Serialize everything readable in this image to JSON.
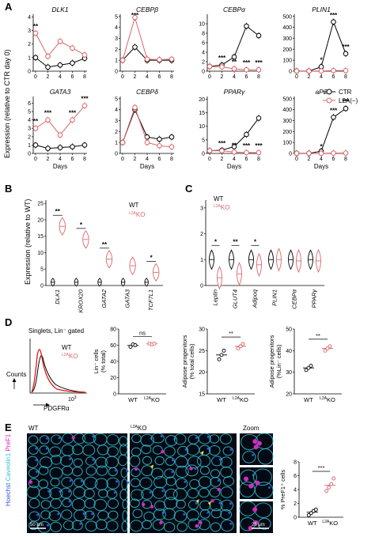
{
  "panel_letters": [
    "A",
    "B",
    "C",
    "D",
    "E"
  ],
  "colors": {
    "ctr": "#000000",
    "l2a": "#d9666a",
    "cyan": "#36c2d0",
    "magenta": "#d32bbf",
    "blue": "#2f5ad8",
    "yellow": "#e8e83a"
  },
  "panelA": {
    "ylabel": "Expression (relative to CTR day 0)",
    "xlabel": "Days",
    "legend": [
      "CTR",
      "L2A(−)"
    ],
    "x_ticks": [
      "0",
      "2",
      "4",
      "6",
      "8"
    ],
    "charts": [
      {
        "title": "DLK1",
        "yticks": [
          "0",
          "1",
          "2",
          "3",
          "4"
        ],
        "ylim": [
          0,
          4.2
        ],
        "x": [
          0,
          2,
          4,
          6,
          8
        ],
        "ctr": [
          1,
          0.3,
          0.45,
          0.6,
          0.95
        ],
        "l2a": [
          2.8,
          1.1,
          2.2,
          1.7,
          1.2
        ],
        "sig": [
          "**",
          "",
          "",
          "",
          ""
        ]
      },
      {
        "title": "CEBPβ",
        "yticks": [
          "0",
          "1",
          "2",
          "3",
          "4",
          "5"
        ],
        "ylim": [
          0,
          5.2
        ],
        "x": [
          0,
          2,
          4,
          6,
          8
        ],
        "ctr": [
          1,
          2.2,
          1,
          1,
          1
        ],
        "l2a": [
          1,
          4.9,
          1.1,
          1.05,
          1.1
        ],
        "sig": [
          "",
          "***",
          "",
          "",
          ""
        ]
      },
      {
        "title": "CEBPα",
        "yticks": [
          "0",
          "2",
          "4",
          "6",
          "8",
          "10"
        ],
        "ylim": [
          0,
          12
        ],
        "x": [
          0,
          2,
          4,
          6,
          8
        ],
        "ctr": [
          1,
          1.3,
          3,
          9.5,
          7.5
        ],
        "l2a": [
          1,
          0.9,
          0.5,
          0.3,
          0.3
        ],
        "sig": [
          "",
          "***",
          "**",
          "***",
          "***"
        ]
      },
      {
        "title": "PLIN1",
        "yticks": [
          "0",
          "100",
          "200",
          "300",
          "400",
          "500"
        ],
        "ylim": [
          0,
          520
        ],
        "x": [
          0,
          2,
          4,
          6,
          8
        ],
        "ctr": [
          1,
          1,
          40,
          450,
          160
        ],
        "l2a": [
          1,
          1,
          2,
          5,
          5
        ],
        "sig": [
          "",
          "",
          "*",
          "***",
          "***"
        ]
      },
      {
        "title": "GATA3",
        "yticks": [
          "0",
          "1",
          "2",
          "3",
          "4",
          "5",
          "6"
        ],
        "ylim": [
          0,
          6.8
        ],
        "x": [
          0,
          2,
          4,
          6,
          8
        ],
        "ctr": [
          1,
          0.6,
          0.7,
          0.8,
          1.0
        ],
        "l2a": [
          3.0,
          4.0,
          2.2,
          4.0,
          5.7
        ],
        "sig": [
          "**",
          "***",
          "",
          "***",
          "***"
        ]
      },
      {
        "title": "CEBPδ",
        "yticks": [
          "0",
          "1",
          "2",
          "3",
          "4",
          "5"
        ],
        "ylim": [
          0,
          5.2
        ],
        "x": [
          0,
          2,
          4,
          6,
          8
        ],
        "ctr": [
          1,
          4,
          1.5,
          1.3,
          1.5
        ],
        "l2a": [
          1,
          4.2,
          1.0,
          0.7,
          0.6
        ],
        "sig": [
          "",
          "",
          "",
          "",
          ""
        ]
      },
      {
        "title": "PPARγ",
        "yticks": [
          "0",
          "5",
          "10",
          "15",
          "20"
        ],
        "ylim": [
          0,
          21
        ],
        "x": [
          0,
          2,
          4,
          6,
          8
        ],
        "ctr": [
          1,
          1.2,
          2.5,
          7,
          13
        ],
        "l2a": [
          1,
          1,
          0.5,
          0.3,
          0.3
        ],
        "sig": [
          "",
          "***",
          "**",
          "***",
          "***"
        ]
      },
      {
        "title": "aP2",
        "yticks": [
          "0",
          "100",
          "200",
          "300",
          "400",
          "500"
        ],
        "ylim": [
          0,
          520
        ],
        "x": [
          0,
          2,
          4,
          6,
          8
        ],
        "ctr": [
          1,
          1,
          20,
          330,
          410
        ],
        "l2a": [
          1,
          1,
          1,
          3,
          3
        ],
        "sig": [
          "",
          "",
          "*",
          "***",
          "***"
        ]
      }
    ]
  },
  "panelB": {
    "ylabel": "Expression (relative to WT)",
    "yticks": [
      "0",
      "5",
      "10",
      "15",
      "20",
      "25"
    ],
    "ylim": [
      0,
      26
    ],
    "legend_wt": "WT",
    "legend_ko": "KO",
    "legend_ko_sup": "L2A",
    "genes": [
      "DLK1",
      "KROX20",
      "GATA2",
      "GATA3",
      "TCF7L1"
    ],
    "wt": [
      1,
      1,
      1,
      1,
      1
    ],
    "ko": [
      18,
      14,
      8,
      6,
      4
    ],
    "sig": [
      "**",
      "*",
      "**",
      "",
      "*"
    ]
  },
  "panelC": {
    "yticks": [
      "0",
      "1",
      "2",
      "3"
    ],
    "ylim": [
      0,
      3.3
    ],
    "legend_wt": "WT",
    "legend_ko": "KO",
    "legend_ko_sup": "L2A",
    "genes": [
      "Leptin",
      "GLUT4",
      "Adipoq",
      "PLIN1",
      "CEBPα",
      "PPARγ"
    ],
    "wt": [
      1,
      1,
      1,
      1,
      1,
      1
    ],
    "ko": [
      0.3,
      0.45,
      0.8,
      1.0,
      0.95,
      0.95
    ],
    "sig": [
      "*",
      "**",
      "*",
      "",
      "",
      ""
    ]
  },
  "panelD": {
    "title": "Singlets, Lin⁻ gated",
    "flow_ylabel": "Counts",
    "flow_xlabel": "PDGFRα",
    "flow_xtick": "10",
    "flow_xtick_sup": "3",
    "legend_wt": "WT",
    "legend_ko": "KO",
    "legend_ko_sup": "L2A",
    "charts": [
      {
        "ylabel": "Lin⁻ cells (% total)",
        "yticks": [
          "0",
          "20",
          "40",
          "60",
          "80"
        ],
        "ylim": [
          0,
          80
        ],
        "wt": [
          58,
          61,
          60
        ],
        "ko": [
          62,
          61,
          62
        ],
        "sig": "ns"
      },
      {
        "ylabel": "Adipose progenitors (% total cells)",
        "yticks": [
          "15",
          "20",
          "25",
          "30"
        ],
        "ylim": [
          15,
          30
        ],
        "wt": [
          23,
          24,
          25
        ],
        "ko": [
          25.5,
          26,
          26.5
        ],
        "sig": "**"
      },
      {
        "ylabel": "Adipose progenitors (%Lin⁻ cells)",
        "yticks": [
          "20",
          "30",
          "40",
          "50"
        ],
        "ylim": [
          20,
          50
        ],
        "wt": [
          31,
          32,
          33
        ],
        "ko": [
          40,
          41,
          42
        ],
        "sig": "**"
      }
    ],
    "x_labels": [
      "WT",
      "KO"
    ],
    "ko_sup": "L2A"
  },
  "panelE": {
    "side_label": [
      "Hoechst",
      "Caveolin1",
      "PreF1"
    ],
    "wt_label": "WT",
    "ko_label": "KO",
    "ko_sup": "L2A",
    "zoom_label": "Zoom",
    "scale1": "50 μm",
    "scale2": "25 μm",
    "chart": {
      "ylabel": "% PreF1⁺ cells",
      "yticks": [
        "0",
        "2",
        "4",
        "6",
        "8"
      ],
      "ylim": [
        0,
        8
      ],
      "wt": [
        0.3,
        0.6,
        0.9,
        1.1
      ],
      "ko": [
        3.8,
        4.3,
        4.8,
        5.6
      ],
      "sig": "***",
      "x_labels": [
        "WT",
        "KO"
      ]
    }
  }
}
